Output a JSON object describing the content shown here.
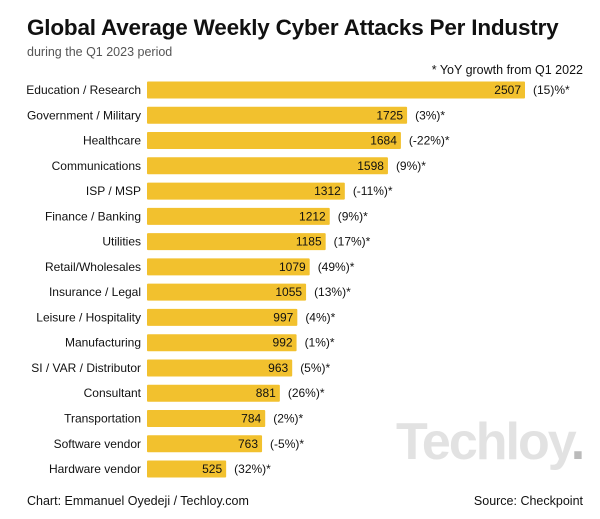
{
  "chart_data": {
    "type": "bar",
    "orientation": "horizontal",
    "title": "Global Average Weekly Cyber Attacks Per Industry",
    "subtitle": "during the Q1 2023 period",
    "note": "* YoY growth from Q1 2022",
    "categories": [
      "Education / Research",
      "Government / Military",
      "Healthcare",
      "Communications",
      "ISP / MSP",
      "Finance / Banking",
      "Utilities",
      "Retail/Wholesales",
      "Insurance / Legal",
      "Leisure / Hospitality",
      "Manufacturing",
      "SI / VAR / Distributor",
      "Consultant",
      "Transportation",
      "Software vendor",
      "Hardware vendor"
    ],
    "values": [
      2507,
      1725,
      1684,
      1598,
      1312,
      1212,
      1185,
      1079,
      1055,
      997,
      992,
      963,
      881,
      784,
      763,
      525
    ],
    "growth_labels": [
      "(15)%*",
      "(3%)*",
      "(-22%)*",
      "(9%)*",
      "(-11%)*",
      "(9%)*",
      "(17%)*",
      "(49%)*",
      "(13%)*",
      "(4%)*",
      "(1%)*",
      "(5%)*",
      "(26%)*",
      "(2%)*",
      "(-5%)*",
      "(32%)*"
    ],
    "bar_color": "#F2C12E",
    "xlim": [
      0,
      2507
    ],
    "grid": false,
    "legend": "none"
  },
  "footer": {
    "credit": "Chart: Emmanuel Oyedeji / Techloy.com",
    "source": "Source: Checkpoint"
  },
  "watermark": "Techloy."
}
